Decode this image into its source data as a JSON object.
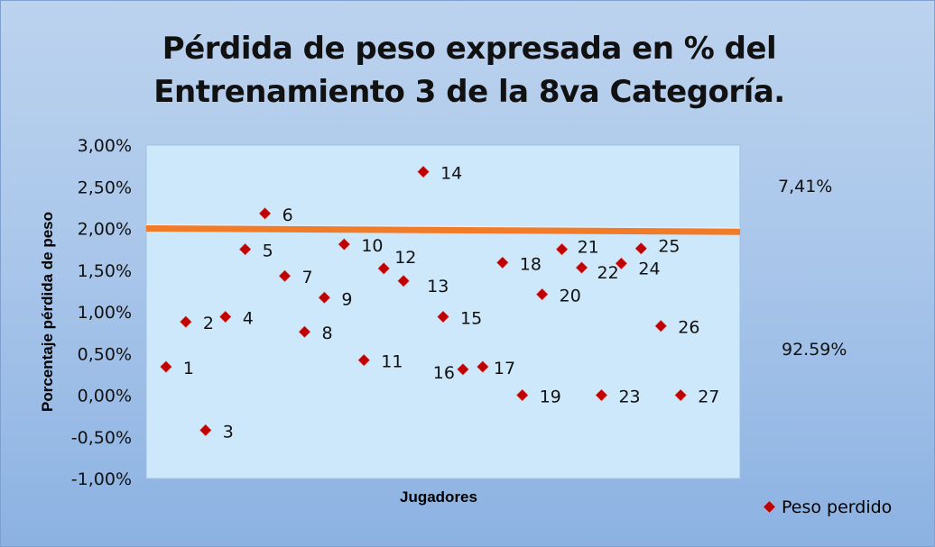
{
  "chart_data": {
    "type": "scatter",
    "title_line1": "Pérdida de peso expresada en % del",
    "title_line2": "Entrenamiento 3 de la 8va Categoría.",
    "xlabel": "Jugadores",
    "ylabel": "Porcentaje pérdida de peso",
    "ylim": [
      -1.0,
      3.0
    ],
    "xlim": [
      0,
      30
    ],
    "yticks": [
      "3,00%",
      "2,50%",
      "2,00%",
      "1,50%",
      "1,00%",
      "0,50%",
      "0,00%",
      "-0,50%",
      "-1,00%"
    ],
    "ytick_values": [
      3.0,
      2.5,
      2.0,
      1.5,
      1.0,
      0.5,
      0.0,
      -0.5,
      -1.0
    ],
    "series": [
      {
        "name": "Peso perdido",
        "color": "#c00000",
        "x": [
          1,
          2,
          3,
          4,
          5,
          6,
          7,
          8,
          9,
          10,
          11,
          12,
          13,
          14,
          15,
          16,
          17,
          18,
          19,
          20,
          21,
          22,
          23,
          24,
          25,
          26,
          27
        ],
        "labels": [
          "1",
          "2",
          "3",
          "4",
          "5",
          "6",
          "7",
          "8",
          "9",
          "10",
          "11",
          "12",
          "13",
          "14",
          "15",
          "16",
          "17",
          "18",
          "19",
          "20",
          "21",
          "22",
          "23",
          "24",
          "25",
          "26",
          "27"
        ],
        "values": [
          0.34,
          0.88,
          -0.42,
          0.94,
          1.75,
          2.18,
          1.43,
          0.76,
          1.17,
          1.81,
          0.42,
          1.52,
          1.37,
          2.68,
          0.94,
          0.31,
          0.34,
          1.59,
          0.0,
          1.21,
          1.75,
          1.53,
          0.0,
          1.58,
          1.76,
          0.83,
          0.0
        ]
      }
    ],
    "trendline": {
      "color": "#f07c2a",
      "y_start": 2.0,
      "y_end": 1.96
    },
    "annotations": [
      "7,41%",
      "92.59%"
    ],
    "legend": {
      "label": "Peso perdido",
      "position": "bottom-right"
    }
  }
}
